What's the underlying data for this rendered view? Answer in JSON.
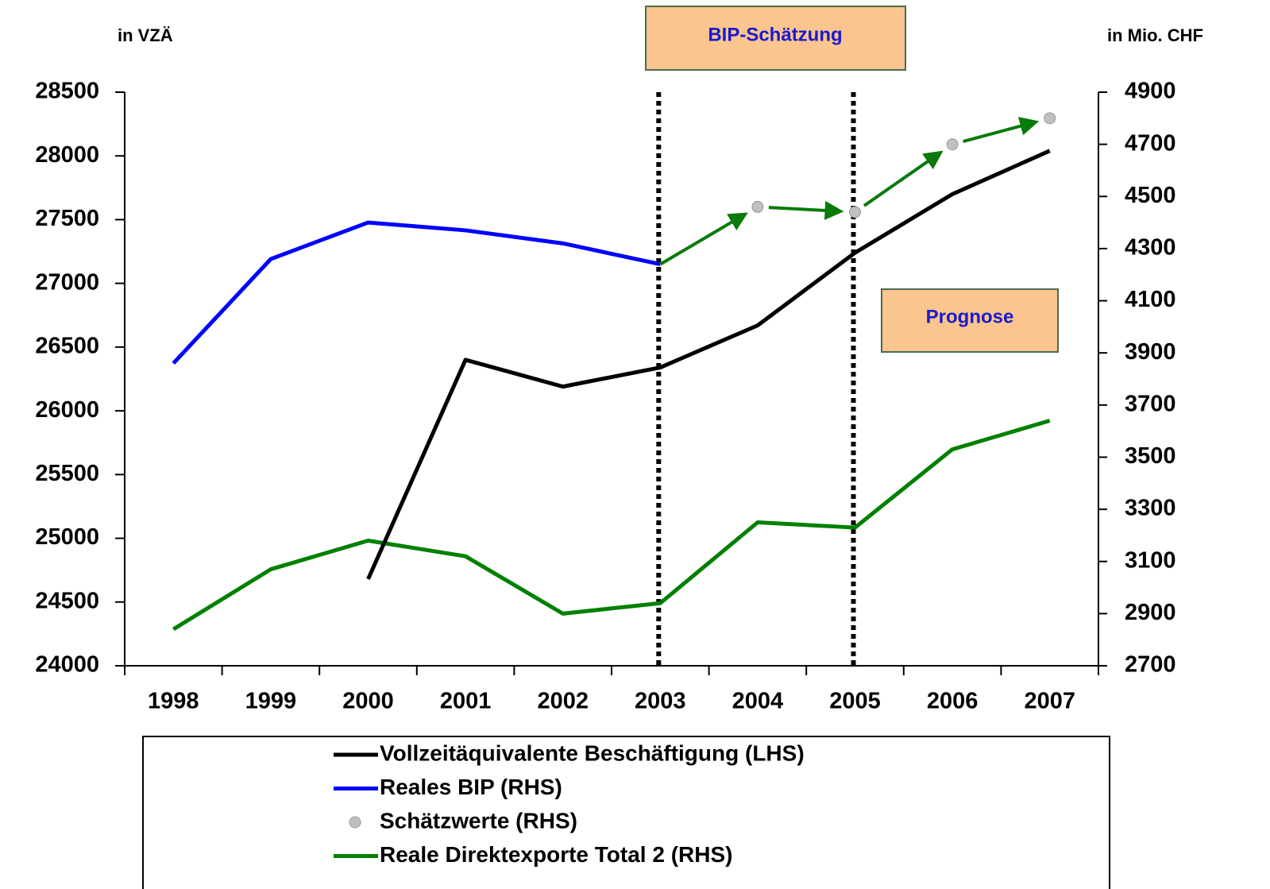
{
  "chart_data": {
    "type": "line",
    "ylabel": "in VZÄ",
    "y2label": "in Mio. CHF",
    "annotations": [
      "BIP-Schätzung",
      "Prognose"
    ],
    "categories": [
      "1998",
      "1999",
      "2000",
      "2001",
      "2002",
      "2003",
      "2004",
      "2005",
      "2006",
      "2007"
    ],
    "ylim": [
      24000,
      28500
    ],
    "yticks": [
      24000,
      24500,
      25000,
      25500,
      26000,
      26500,
      27000,
      27500,
      28000,
      28500
    ],
    "y2lim": [
      2700,
      4900
    ],
    "y2ticks": [
      2700,
      2900,
      3100,
      3300,
      3500,
      3700,
      3900,
      4100,
      4300,
      4500,
      4700,
      4900
    ],
    "series": [
      {
        "name": "Vollzeitäquivalente Beschäftigung (LHS)",
        "color": "#000000",
        "mode": "line",
        "values": [
          null,
          null,
          24680,
          26400,
          26190,
          26340,
          26670,
          27240,
          27700,
          28040
        ]
      },
      {
        "name": "Reales BIP (RHS)",
        "color": "#0000ff",
        "mode": "line",
        "axis": "y2",
        "values": [
          3860,
          4260,
          4400,
          4370,
          4320,
          4240,
          null,
          null,
          null,
          null
        ]
      },
      {
        "name": "Schätzwerte (RHS)",
        "color": "#c0c0c0",
        "mode": "markers",
        "axis": "y2",
        "values": [
          null,
          null,
          null,
          null,
          null,
          null,
          4460,
          4440,
          4700,
          4800
        ]
      },
      {
        "name": "Reale Direktexporte Total 2 (RHS)",
        "color": "#008000",
        "mode": "line",
        "axis": "y2",
        "values": [
          2840,
          3070,
          3180,
          3120,
          2900,
          2940,
          3250,
          3230,
          3530,
          3640
        ]
      }
    ]
  }
}
